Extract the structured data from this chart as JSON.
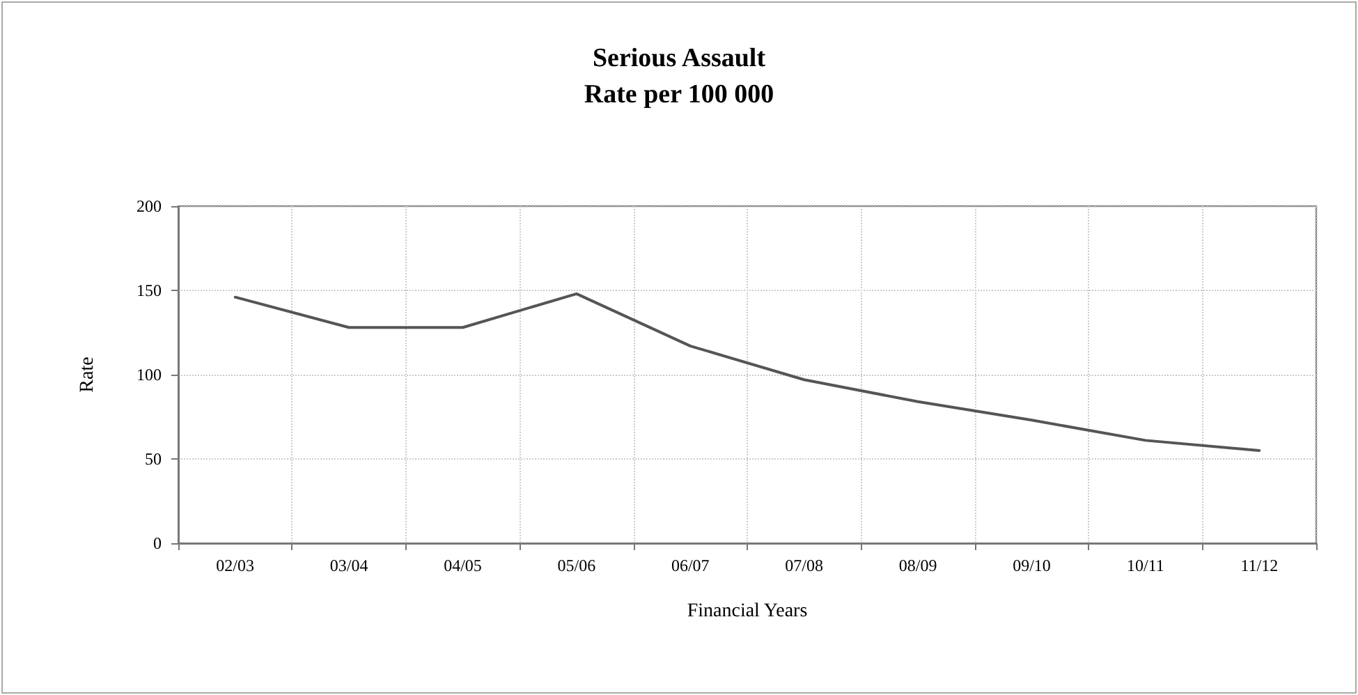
{
  "chart_data": {
    "type": "line",
    "title": "Serious Assault\nRate per 100 000",
    "xlabel": "Financial Years",
    "ylabel": "Rate",
    "categories": [
      "02/03",
      "03/04",
      "04/05",
      "05/06",
      "06/07",
      "07/08",
      "08/09",
      "09/10",
      "10/11",
      "11/12"
    ],
    "series": [
      {
        "color": "#555555",
        "values": [
          146,
          128,
          128,
          148,
          117,
          97,
          84,
          73,
          61,
          55
        ]
      }
    ],
    "ylim": [
      0,
      200
    ],
    "yticks": [
      0,
      50,
      100,
      150,
      200
    ],
    "grid": true,
    "marker": "none",
    "line_style": "solid"
  }
}
